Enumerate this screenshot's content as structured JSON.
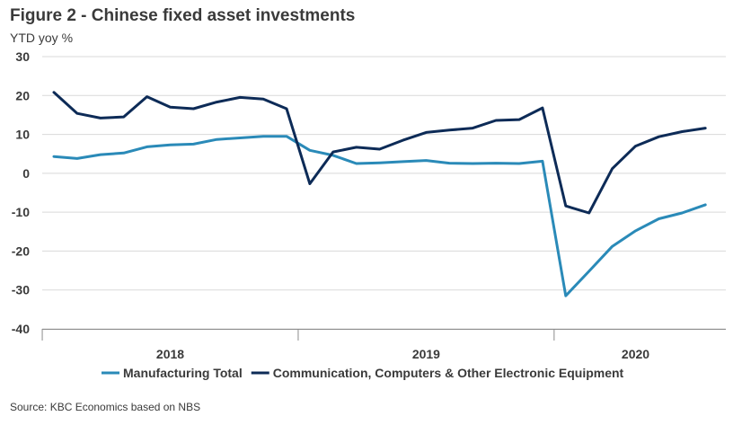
{
  "chart_data": {
    "type": "line",
    "title": "Figure 2 - Chinese fixed asset investments",
    "ylabel": "YTD yoy %",
    "ylim": [
      -40,
      30
    ],
    "yticks": [
      30,
      20,
      10,
      0,
      -10,
      -20,
      -30,
      -40
    ],
    "xtick_labels": [
      "2018",
      "2019",
      "2020"
    ],
    "grid": true,
    "legend_position": "bottom",
    "x": [
      "2018-02",
      "2018-03",
      "2018-04",
      "2018-05",
      "2018-06",
      "2018-07",
      "2018-08",
      "2018-09",
      "2018-10",
      "2018-11",
      "2018-12",
      "2019-02",
      "2019-03",
      "2019-04",
      "2019-05",
      "2019-06",
      "2019-07",
      "2019-08",
      "2019-09",
      "2019-10",
      "2019-11",
      "2019-12",
      "2020-02",
      "2020-03",
      "2020-04",
      "2020-05",
      "2020-06",
      "2020-07",
      "2020-08"
    ],
    "series": [
      {
        "name": "Manufacturing Total",
        "color": "#2a8ab8",
        "values": [
          4.3,
          3.8,
          4.8,
          5.2,
          6.8,
          7.3,
          7.5,
          8.7,
          9.1,
          9.5,
          9.5,
          5.9,
          4.6,
          2.5,
          2.7,
          3.0,
          3.3,
          2.6,
          2.5,
          2.6,
          2.5,
          3.1,
          -31.5,
          -25.2,
          -18.8,
          -14.8,
          -11.7,
          -10.2,
          -8.1
        ]
      },
      {
        "name": "Communication, Computers & Other Electronic Equipment",
        "color": "#0d2b57",
        "values": [
          20.8,
          15.4,
          14.2,
          14.5,
          19.7,
          17.0,
          16.6,
          18.3,
          19.5,
          19.1,
          16.6,
          -2.7,
          5.5,
          6.7,
          6.2,
          8.5,
          10.5,
          11.1,
          11.6,
          13.6,
          13.8,
          16.8,
          -8.4,
          -10.2,
          1.2,
          7.0,
          9.4,
          10.7,
          11.6
        ]
      }
    ]
  },
  "source": "Source: KBC Economics based on NBS"
}
